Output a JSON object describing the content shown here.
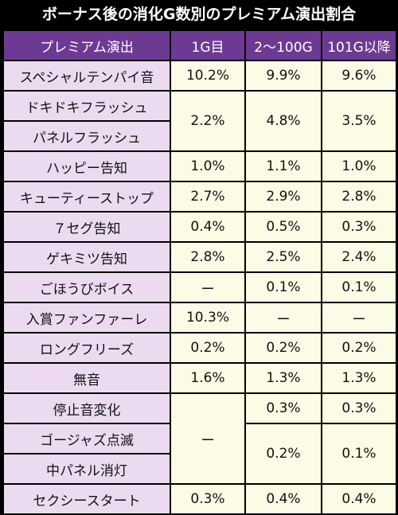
{
  "title": "ボーナス後の消化G数別のプレミアム演出割合",
  "headers": [
    "プレミアム演出",
    "1G目",
    "2〜100G",
    "101G以降"
  ],
  "rows": [
    {
      "label": "スペシャルテンパイ音",
      "g1": "10.2%",
      "g2": "9.9%",
      "g3": "9.6%"
    },
    {
      "label": "ドキドキフラッシュ",
      "g1": "2.2%",
      "g2": "4.8%",
      "g3": "3.5%"
    },
    {
      "label": "パネルフラッシュ"
    },
    {
      "label": "ハッピー告知",
      "g1": "1.0%",
      "g2": "1.1%",
      "g3": "1.0%"
    },
    {
      "label": "キューティーストップ",
      "g1": "2.7%",
      "g2": "2.9%",
      "g3": "2.8%"
    },
    {
      "label": "７セグ告知",
      "g1": "0.4%",
      "g2": "0.5%",
      "g3": "0.3%"
    },
    {
      "label": "ゲキミツ告知",
      "g1": "2.8%",
      "g2": "2.5%",
      "g3": "2.4%"
    },
    {
      "label": "ごほうびボイス",
      "g1": "ー",
      "g2": "0.1%",
      "g3": "0.1%"
    },
    {
      "label": "入賞ファンファーレ",
      "g1": "10.3%",
      "g2": "ー",
      "g3": "ー"
    },
    {
      "label": "ロングフリーズ",
      "g1": "0.2%",
      "g2": "0.2%",
      "g3": "0.2%"
    },
    {
      "label": "無音",
      "g1": "1.6%",
      "g2": "1.3%",
      "g3": "1.3%"
    },
    {
      "label": "停止音変化",
      "g1": "ー",
      "g2": "0.3%",
      "g3": "0.3%"
    },
    {
      "label": "ゴージャズ点滅",
      "g2": "0.2%",
      "g3": "0.1%"
    },
    {
      "label": "中パネル消灯"
    },
    {
      "label": "セクシースタート",
      "g1": "0.3%",
      "g2": "0.4%",
      "g3": "0.4%"
    }
  ],
  "colors": {
    "header_bg": "#6d3a93",
    "label_bg": "#ecdbf0",
    "value_bg": "#fcfbe6",
    "border": "#000000"
  }
}
